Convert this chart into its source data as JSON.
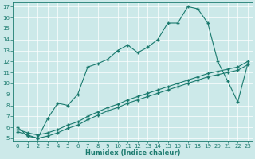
{
  "xlabel": "Humidex (Indice chaleur)",
  "bg_color": "#cce9e9",
  "line_color": "#1a7a6e",
  "xmin": 0,
  "xmax": 23,
  "ymin": 5,
  "ymax": 17,
  "line1_x": [
    0,
    1,
    2,
    3,
    4,
    5,
    6,
    7,
    8,
    9,
    10,
    11,
    12,
    13,
    14,
    15,
    16,
    17,
    18,
    19,
    20,
    21,
    22,
    23
  ],
  "line1_y": [
    6.0,
    5.2,
    5.0,
    6.8,
    8.2,
    8.0,
    9.0,
    11.5,
    11.8,
    12.2,
    13.0,
    13.5,
    12.8,
    13.3,
    14.0,
    15.5,
    15.5,
    17.0,
    16.8,
    15.5,
    12.0,
    10.2,
    8.3,
    11.8
  ],
  "line2_x": [
    0,
    1,
    2,
    3,
    4,
    5,
    6,
    7,
    8,
    9,
    10,
    11,
    12,
    13,
    14,
    15,
    16,
    17,
    18,
    19,
    20,
    21,
    22,
    23
  ],
  "line2_y": [
    5.8,
    5.5,
    5.3,
    5.5,
    5.8,
    6.2,
    6.5,
    7.0,
    7.4,
    7.8,
    8.1,
    8.5,
    8.8,
    9.1,
    9.4,
    9.7,
    10.0,
    10.3,
    10.6,
    10.9,
    11.1,
    11.3,
    11.5,
    12.0
  ],
  "line3_x": [
    0,
    1,
    2,
    3,
    4,
    5,
    6,
    7,
    8,
    9,
    10,
    11,
    12,
    13,
    14,
    15,
    16,
    17,
    18,
    19,
    20,
    21,
    22,
    23
  ],
  "line3_y": [
    5.6,
    5.3,
    5.0,
    5.2,
    5.5,
    5.9,
    6.2,
    6.7,
    7.1,
    7.5,
    7.8,
    8.2,
    8.5,
    8.8,
    9.1,
    9.4,
    9.7,
    10.0,
    10.3,
    10.6,
    10.8,
    11.0,
    11.2,
    11.7
  ]
}
